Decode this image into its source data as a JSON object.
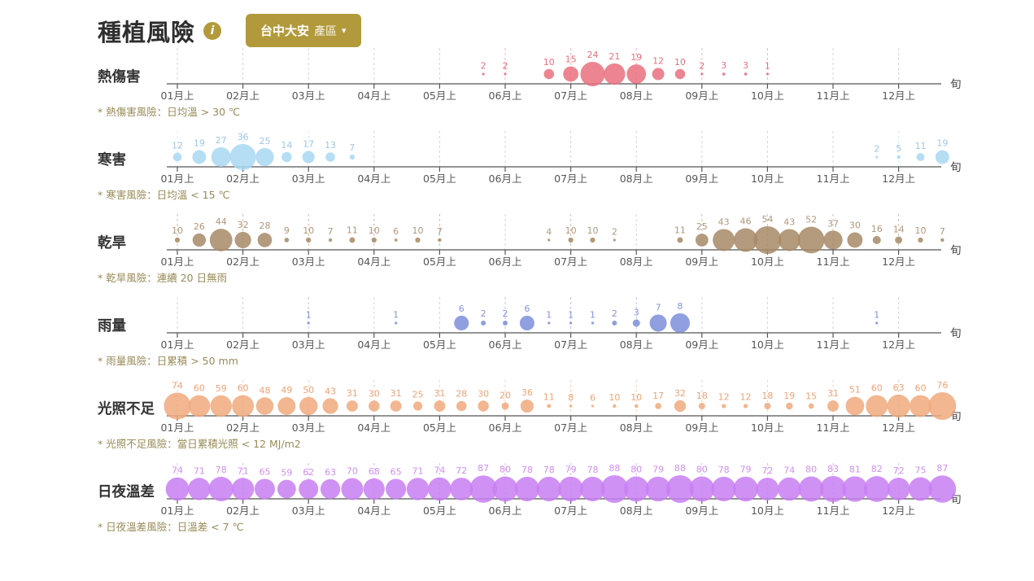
{
  "header": {
    "title": "種植風險",
    "info_icon": "i",
    "region_button": {
      "region": "台中大安",
      "suffix": "產區",
      "caret": "▾"
    },
    "accent_gold": "#b29a3c"
  },
  "axis": {
    "month_labels": [
      "01月上",
      "02月上",
      "03月上",
      "04月上",
      "05月上",
      "06月上",
      "07月上",
      "08月上",
      "09月上",
      "10月上",
      "11月上",
      "12月上"
    ],
    "end_label": "旬",
    "axis_color": "#555555",
    "gridline_color": "#d4d4d4",
    "footnote_color": "#988b58",
    "row_label_color": "#333333"
  },
  "chart_data": {
    "type": "scatter",
    "subtype": "bubble-timeline",
    "x_unit": "旬 (10-day period)",
    "x": [
      "01上",
      "01中",
      "01下",
      "02上",
      "02中",
      "02下",
      "03上",
      "03中",
      "03下",
      "04上",
      "04中",
      "04下",
      "05上",
      "05中",
      "05下",
      "06上",
      "06中",
      "06下",
      "07上",
      "07中",
      "07下",
      "08上",
      "08中",
      "08下",
      "09上",
      "09中",
      "09下",
      "10上",
      "10中",
      "10下",
      "11上",
      "11中",
      "11下",
      "12上",
      "12中",
      "12下"
    ],
    "series": [
      {
        "id": "heat-damage",
        "name": "熱傷害",
        "footnote": "* 熱傷害風險：日均溫 > 30 ℃",
        "color": "#e9707e",
        "label_color": "#e9707e",
        "max_radius": 15,
        "values": [
          null,
          null,
          null,
          null,
          null,
          null,
          null,
          null,
          null,
          null,
          null,
          null,
          null,
          null,
          2,
          2,
          null,
          10,
          15,
          24,
          21,
          19,
          12,
          10,
          2,
          3,
          3,
          1,
          null,
          null,
          null,
          null,
          null,
          null,
          null,
          null
        ]
      },
      {
        "id": "cold-damage",
        "name": "寒害",
        "footnote": "* 寒害風險：日均溫 < 15 ℃",
        "color": "#a8d8f3",
        "label_color": "#a0c6e2",
        "max_radius": 16,
        "values": [
          12,
          19,
          27,
          36,
          25,
          14,
          17,
          13,
          7,
          null,
          null,
          null,
          null,
          null,
          null,
          null,
          null,
          null,
          null,
          null,
          null,
          null,
          null,
          null,
          null,
          null,
          null,
          null,
          null,
          null,
          null,
          null,
          2,
          5,
          11,
          19
        ]
      },
      {
        "id": "drought",
        "name": "乾旱",
        "footnote": "* 乾旱風險：連續 20 日無雨",
        "color": "#a78a66",
        "label_color": "#b0977c",
        "max_radius": 17,
        "values": [
          10,
          26,
          44,
          32,
          28,
          9,
          10,
          7,
          11,
          10,
          6,
          10,
          7,
          null,
          null,
          null,
          null,
          4,
          10,
          10,
          2,
          null,
          null,
          11,
          25,
          43,
          46,
          54,
          43,
          52,
          37,
          30,
          16,
          14,
          10,
          7
        ]
      },
      {
        "id": "rainfall",
        "name": "雨量",
        "footnote": "* 雨量風險：日累積 > 50 mm",
        "color": "#7b8ed9",
        "label_color": "#8693dd",
        "max_radius": 12,
        "values": [
          null,
          null,
          null,
          null,
          null,
          null,
          1,
          null,
          null,
          null,
          1,
          null,
          null,
          6,
          2,
          2,
          6,
          1,
          1,
          1,
          2,
          3,
          7,
          8,
          null,
          null,
          null,
          null,
          null,
          null,
          null,
          null,
          1,
          null,
          null,
          null
        ]
      },
      {
        "id": "insufficient-light",
        "name": "光照不足",
        "footnote": "* 光照不足風險：當日累積光照 < 12 MJ/m2",
        "color": "#f0a97c",
        "label_color": "#efa276",
        "max_radius": 17,
        "values": [
          74,
          60,
          59,
          60,
          48,
          49,
          50,
          43,
          31,
          30,
          31,
          25,
          31,
          28,
          30,
          20,
          36,
          11,
          8,
          6,
          10,
          10,
          17,
          32,
          18,
          12,
          12,
          18,
          19,
          15,
          31,
          51,
          60,
          63,
          60,
          76
        ]
      },
      {
        "id": "day-night-temp-diff",
        "name": "日夜溫差",
        "footnote": "* 日夜溫差風險：日溫差 < 7 ℃",
        "color": "#c87ef2",
        "label_color": "#cf8ff2",
        "max_radius": 17,
        "values": [
          74,
          71,
          78,
          71,
          65,
          59,
          62,
          63,
          70,
          68,
          65,
          71,
          74,
          72,
          87,
          80,
          78,
          78,
          79,
          78,
          88,
          80,
          79,
          88,
          80,
          78,
          79,
          72,
          74,
          80,
          83,
          81,
          82,
          72,
          75,
          87
        ]
      }
    ]
  }
}
